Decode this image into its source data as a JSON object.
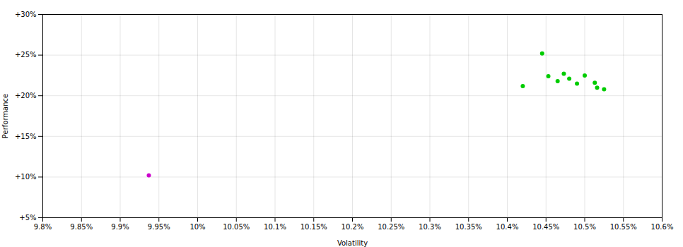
{
  "chart_data": {
    "type": "scatter",
    "xlabel": "Volatility",
    "ylabel": "Performance",
    "xlim": [
      9.8,
      10.6
    ],
    "ylim": [
      5.0,
      30.0
    ],
    "xticks": [
      {
        "value": 9.8,
        "label": "9.8%"
      },
      {
        "value": 9.85,
        "label": "9.85%"
      },
      {
        "value": 9.9,
        "label": "9.9%"
      },
      {
        "value": 9.95,
        "label": "9.95%"
      },
      {
        "value": 10.0,
        "label": "10%"
      },
      {
        "value": 10.05,
        "label": "10.05%"
      },
      {
        "value": 10.1,
        "label": "10.1%"
      },
      {
        "value": 10.15,
        "label": "10.15%"
      },
      {
        "value": 10.2,
        "label": "10.2%"
      },
      {
        "value": 10.25,
        "label": "10.25%"
      },
      {
        "value": 10.3,
        "label": "10.3%"
      },
      {
        "value": 10.35,
        "label": "10.35%"
      },
      {
        "value": 10.4,
        "label": "10.4%"
      },
      {
        "value": 10.45,
        "label": "10.45%"
      },
      {
        "value": 10.5,
        "label": "10.5%"
      },
      {
        "value": 10.55,
        "label": "10.55%"
      },
      {
        "value": 10.6,
        "label": "10.6%"
      }
    ],
    "yticks": [
      {
        "value": 5,
        "label": "+5%"
      },
      {
        "value": 10,
        "label": "+10%"
      },
      {
        "value": 15,
        "label": "+15%"
      },
      {
        "value": 20,
        "label": "+20%"
      },
      {
        "value": 25,
        "label": "+25%"
      },
      {
        "value": 30,
        "label": "+30%"
      }
    ],
    "grid": true,
    "series": [
      {
        "color": "#00cc00",
        "x": [
          10.445,
          10.42,
          10.453,
          10.465,
          10.473,
          10.48,
          10.49,
          10.5,
          10.513,
          10.516,
          10.525
        ],
        "values": [
          25.2,
          21.2,
          22.4,
          21.8,
          22.7,
          22.1,
          21.5,
          22.5,
          21.6,
          21.0,
          20.8
        ]
      },
      {
        "color": "#cc00cc",
        "x": [
          9.937
        ],
        "values": [
          10.2
        ]
      }
    ]
  }
}
